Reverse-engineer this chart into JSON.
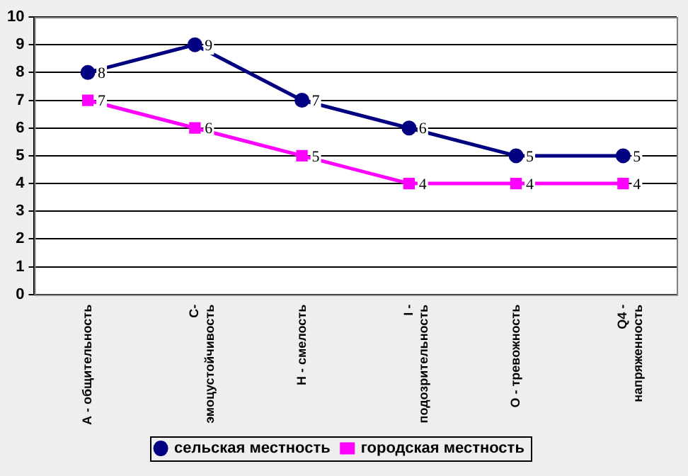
{
  "chart_data": {
    "type": "line",
    "categories": [
      "А - общительность",
      "С-\nэмоцустойчивость",
      "Н - смелость",
      "I -\nподозрительность",
      "О - тревожность",
      "Q4 -\nнапряженность"
    ],
    "series": [
      {
        "name": "сельская местность",
        "color": "#000080",
        "marker": "circle",
        "values": [
          8,
          9,
          7,
          6,
          5,
          5
        ]
      },
      {
        "name": "городская местность",
        "color": "#ff00ff",
        "marker": "square",
        "values": [
          7,
          6,
          5,
          4,
          4,
          4
        ]
      }
    ],
    "ylim": [
      0,
      10
    ],
    "yticks": [
      0,
      1,
      2,
      3,
      4,
      5,
      6,
      7,
      8,
      9,
      10
    ],
    "grid": "y",
    "legend": "bottom",
    "data_labels": true
  }
}
